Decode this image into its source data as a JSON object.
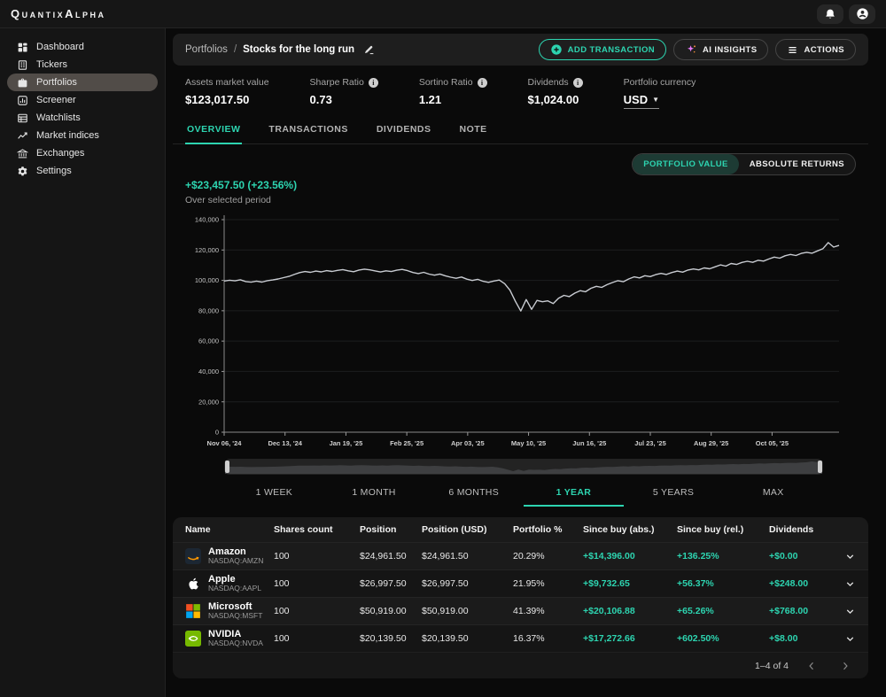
{
  "theme": {
    "accent": "#2dd4b0",
    "chart_line": "#c9ccd2",
    "positive": "#2dd4b0",
    "panel": "#1e1e1e"
  },
  "app": {
    "logo": "QuantixAlpha"
  },
  "topbar": {
    "icons": [
      "bell",
      "profile"
    ]
  },
  "sidebar": {
    "items": [
      {
        "label": "Dashboard",
        "icon": "dashboard-icon",
        "active": false
      },
      {
        "label": "Tickers",
        "icon": "tickers-icon",
        "active": false
      },
      {
        "label": "Portfolios",
        "icon": "portfolios-icon",
        "active": true
      },
      {
        "label": "Screener",
        "icon": "screener-icon",
        "active": false
      },
      {
        "label": "Watchlists",
        "icon": "watchlists-icon",
        "active": false
      },
      {
        "label": "Market indices",
        "icon": "market-indices-icon",
        "active": false
      },
      {
        "label": "Exchanges",
        "icon": "exchanges-icon",
        "active": false
      },
      {
        "label": "Settings",
        "icon": "settings-icon",
        "active": false
      }
    ]
  },
  "breadcrumb": {
    "parent": "Portfolios",
    "separator": "/",
    "current": "Stocks for the long run"
  },
  "actions": {
    "add_transaction": "ADD TRANSACTION",
    "ai_insights": "AI INSIGHTS",
    "actions_menu": "ACTIONS"
  },
  "stats": [
    {
      "label": "Assets market value",
      "value": "$123,017.50",
      "info": false
    },
    {
      "label": "Sharpe Ratio",
      "value": "0.73",
      "info": true
    },
    {
      "label": "Sortino Ratio",
      "value": "1.21",
      "info": true
    },
    {
      "label": "Dividends",
      "value": "$1,024.00",
      "info": true
    }
  ],
  "currency": {
    "label": "Portfolio currency",
    "value": "USD"
  },
  "tabs": [
    {
      "label": "OVERVIEW",
      "active": true
    },
    {
      "label": "TRANSACTIONS",
      "active": false
    },
    {
      "label": "DIVIDENDS",
      "active": false
    },
    {
      "label": "NOTE",
      "active": false
    }
  ],
  "chart_toggle": [
    {
      "label": "PORTFOLIO VALUE",
      "active": true
    },
    {
      "label": "ABSOLUTE RETURNS",
      "active": false
    }
  ],
  "performance": {
    "gain": "+$23,457.50 (+23.56%)",
    "caption": "Over selected period"
  },
  "chart_data": {
    "type": "line",
    "title": "Portfolio value over 1 year",
    "xlabel": "",
    "ylabel": "",
    "ylim": [
      0,
      140000
    ],
    "grid": true,
    "legend": false,
    "y_ticks": [
      "0",
      "20,000",
      "40,000",
      "60,000",
      "80,000",
      "100,000",
      "120,000",
      "140,000"
    ],
    "x_ticks": [
      "Nov 06, '24",
      "Dec 13, '24",
      "Jan 19, '25",
      "Feb 25, '25",
      "Apr 03, '25",
      "May 10, '25",
      "Jun 16, '25",
      "Jul 23, '25",
      "Aug 29, '25",
      "Oct 05, '25"
    ],
    "values": [
      99600,
      100100,
      99700,
      100400,
      99200,
      98800,
      99500,
      98900,
      99800,
      100300,
      100900,
      101800,
      102600,
      103900,
      105100,
      105800,
      105300,
      106100,
      105600,
      106400,
      105900,
      106600,
      107100,
      106300,
      105700,
      106800,
      107400,
      106900,
      106200,
      105500,
      106300,
      105800,
      106700,
      107200,
      106400,
      105200,
      104500,
      105300,
      104100,
      103400,
      104200,
      103000,
      102100,
      101400,
      102200,
      100800,
      99900,
      100700,
      99400,
      98700,
      99600,
      100200,
      97800,
      93500,
      86200,
      79800,
      87400,
      80900,
      86800,
      85900,
      86500,
      84700,
      88200,
      90100,
      89300,
      91600,
      93200,
      92500,
      94800,
      96100,
      95400,
      97200,
      98600,
      99800,
      99100,
      100900,
      102300,
      101600,
      103100,
      102500,
      103800,
      104600,
      103900,
      105200,
      106100,
      105400,
      106800,
      107500,
      106900,
      108200,
      107600,
      108900,
      110200,
      109400,
      111100,
      110500,
      111800,
      112600,
      111900,
      113200,
      112700,
      114100,
      115300,
      114600,
      116200,
      117100,
      116400,
      117800,
      118500,
      117900,
      119400,
      120800,
      124900,
      121900,
      123017.5
    ]
  },
  "range_buttons": [
    {
      "label": "1 WEEK",
      "active": false
    },
    {
      "label": "1 MONTH",
      "active": false
    },
    {
      "label": "6 MONTHS",
      "active": false
    },
    {
      "label": "1 YEAR",
      "active": true
    },
    {
      "label": "5 YEARS",
      "active": false
    },
    {
      "label": "MAX",
      "active": false
    }
  ],
  "table": {
    "columns": [
      "Name",
      "Shares count",
      "Position",
      "Position (USD)",
      "Portfolio %",
      "Since buy (abs.)",
      "Since buy (rel.)",
      "Dividends"
    ],
    "rows": [
      {
        "icon": "amazon-logo",
        "name": "Amazon",
        "ticker": "NASDAQ:AMZN",
        "shares": "100",
        "position": "$24,961.50",
        "position_usd": "$24,961.50",
        "portfolio_pct": "20.29%",
        "since_abs": "+$14,396.00",
        "since_rel": "+136.25%",
        "dividends": "+$0.00"
      },
      {
        "icon": "apple-logo",
        "name": "Apple",
        "ticker": "NASDAQ:AAPL",
        "shares": "100",
        "position": "$26,997.50",
        "position_usd": "$26,997.50",
        "portfolio_pct": "21.95%",
        "since_abs": "+$9,732.65",
        "since_rel": "+56.37%",
        "dividends": "+$248.00"
      },
      {
        "icon": "microsoft-logo",
        "name": "Microsoft",
        "ticker": "NASDAQ:MSFT",
        "shares": "100",
        "position": "$50,919.00",
        "position_usd": "$50,919.00",
        "portfolio_pct": "41.39%",
        "since_abs": "+$20,106.88",
        "since_rel": "+65.26%",
        "dividends": "+$768.00"
      },
      {
        "icon": "nvidia-logo",
        "name": "NVIDIA",
        "ticker": "NASDAQ:NVDA",
        "shares": "100",
        "position": "$20,139.50",
        "position_usd": "$20,139.50",
        "portfolio_pct": "16.37%",
        "since_abs": "+$17,272.66",
        "since_rel": "+602.50%",
        "dividends": "+$8.00"
      }
    ]
  },
  "pagination": {
    "text": "1–4 of 4"
  }
}
